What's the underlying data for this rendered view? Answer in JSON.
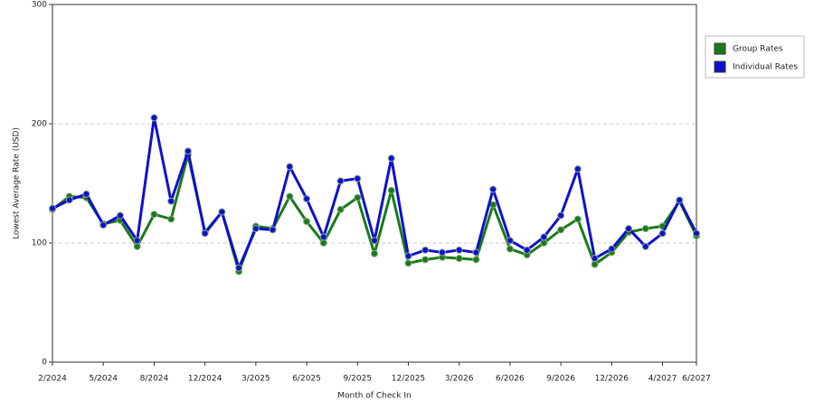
{
  "chart_data": {
    "type": "line",
    "x_label": "Month of Check In",
    "y_label": "Lowest Average Rate (USD)",
    "categories": [
      "2/2024",
      null,
      null,
      "5/2024",
      null,
      null,
      "8/2024",
      null,
      null,
      "12/2024",
      null,
      null,
      "3/2025",
      null,
      null,
      "6/2025",
      null,
      null,
      "9/2025",
      null,
      null,
      "12/2025",
      null,
      null,
      "3/2026",
      null,
      null,
      "6/2026",
      null,
      null,
      "9/2026",
      null,
      null,
      "12/2026",
      null,
      null,
      "4/2027",
      null,
      "6/2027"
    ],
    "series": [
      {
        "name": "Group Rates",
        "color": "#1a7a1a",
        "values": [
          128,
          139,
          138,
          116,
          119,
          97,
          124,
          120,
          174,
          109,
          126,
          76,
          114,
          112,
          139,
          118,
          100,
          128,
          138,
          91,
          144,
          83,
          86,
          88,
          87,
          86,
          132,
          95,
          90,
          100,
          111,
          120,
          82,
          92,
          109,
          112,
          114,
          135,
          106
        ]
      },
      {
        "name": "Individual Rates",
        "color": "#1010cc",
        "values": [
          129,
          136,
          141,
          115,
          123,
          102,
          205,
          135,
          177,
          108,
          126,
          79,
          112,
          111,
          164,
          137,
          105,
          152,
          154,
          102,
          171,
          89,
          94,
          92,
          94,
          92,
          145,
          102,
          94,
          105,
          123,
          162,
          87,
          95,
          112,
          97,
          108,
          136,
          108
        ]
      }
    ],
    "ylim": [
      0,
      300
    ],
    "yticks": [
      0,
      100,
      200,
      300
    ],
    "grid": true,
    "legend": "right"
  }
}
